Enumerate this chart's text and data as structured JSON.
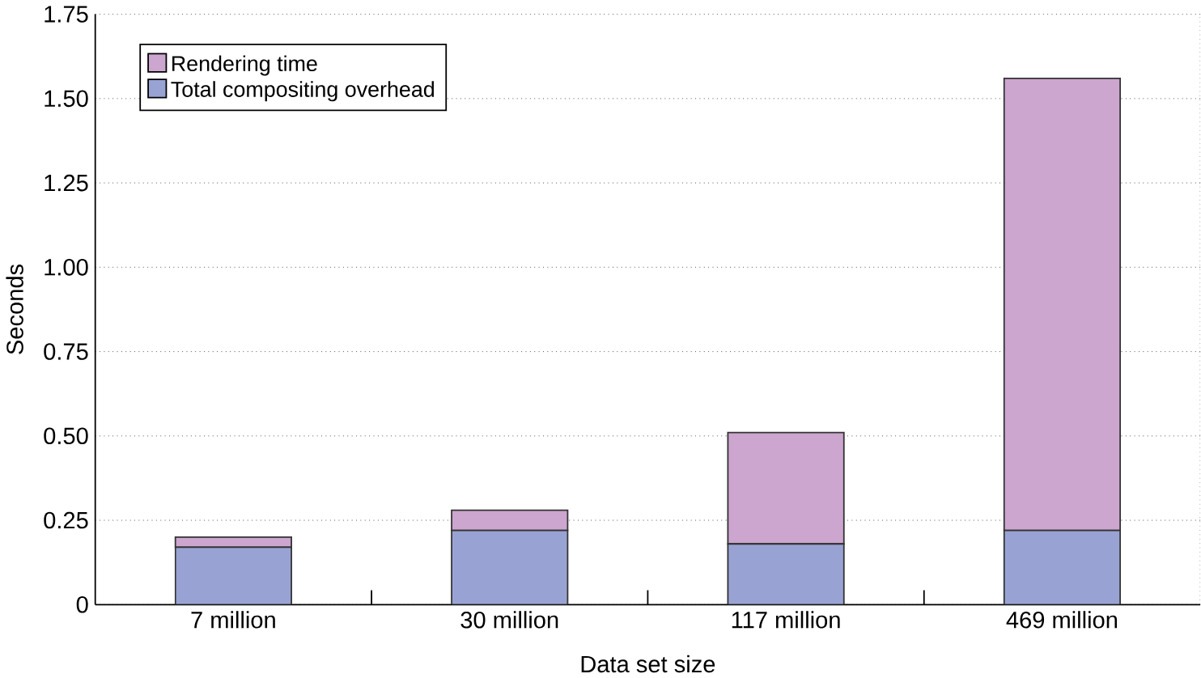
{
  "chart_data": {
    "type": "bar",
    "stacked": true,
    "xlabel": "Data set size",
    "ylabel": "Seconds",
    "categories": [
      "7 million",
      "30 million",
      "117 million",
      "469 million"
    ],
    "series": [
      {
        "name": "Total compositing overhead",
        "color": "#99a3d3",
        "values": [
          0.17,
          0.22,
          0.18,
          0.22
        ]
      },
      {
        "name": "Rendering time",
        "color": "#cca6cf",
        "values": [
          0.03,
          0.06,
          0.33,
          1.34
        ]
      }
    ],
    "ylim": [
      0,
      1.75
    ],
    "yticks": [
      {
        "value": 0,
        "label": "0"
      },
      {
        "value": 0.25,
        "label": "0.25"
      },
      {
        "value": 0.5,
        "label": "0.50"
      },
      {
        "value": 0.75,
        "label": "0.75"
      },
      {
        "value": 1,
        "label": "1.00"
      },
      {
        "value": 1.25,
        "label": "1.25"
      },
      {
        "value": 1.5,
        "label": "1.50"
      },
      {
        "value": 1.75,
        "label": "1.75"
      }
    ],
    "grid": "y",
    "legend": "top left"
  }
}
